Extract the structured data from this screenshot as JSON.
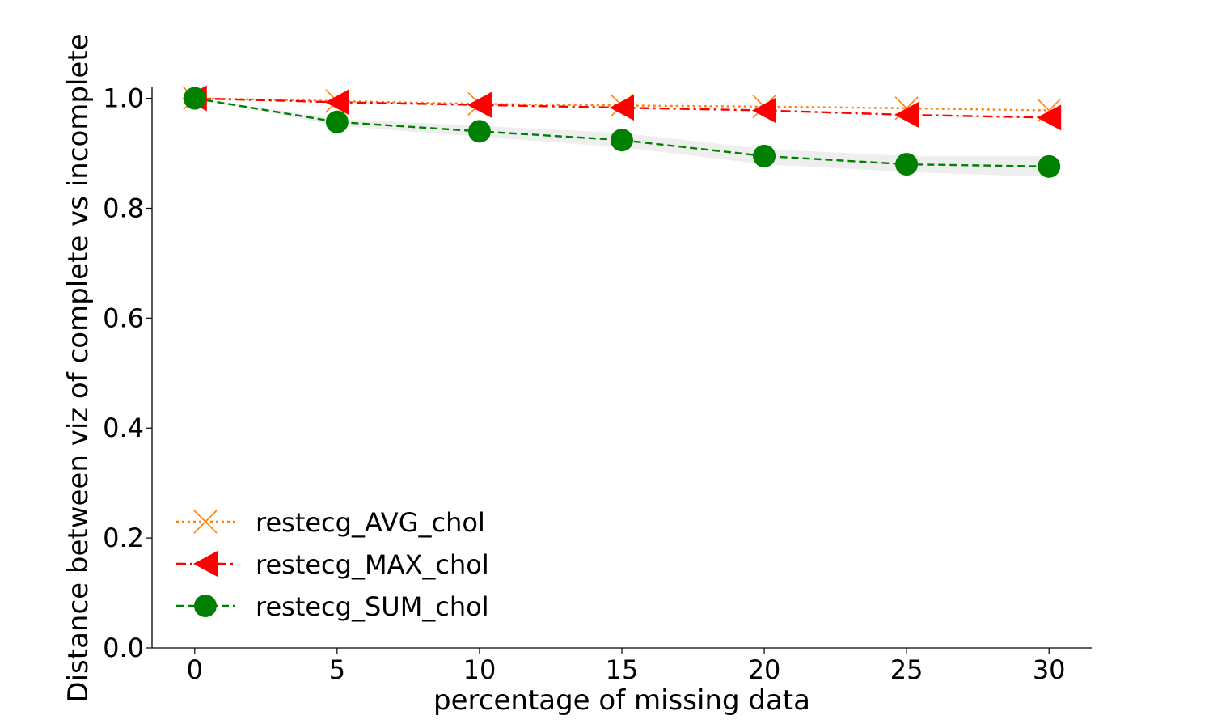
{
  "chart_data": {
    "type": "line",
    "title": "",
    "xlabel": "percentage of missing data",
    "ylabel": "Distance between viz of complete vs incomplete",
    "xlim": [
      -1.5,
      31.5
    ],
    "ylim": [
      0.0,
      1.02
    ],
    "xticks": [
      0,
      5,
      10,
      15,
      20,
      25,
      30
    ],
    "yticks": [
      0.0,
      0.2,
      0.4,
      0.6,
      0.8,
      1.0
    ],
    "xtick_labels": [
      "0",
      "5",
      "10",
      "15",
      "20",
      "25",
      "30"
    ],
    "ytick_labels": [
      "0.0",
      "0.2",
      "0.4",
      "0.6",
      "0.8",
      "1.0"
    ],
    "grid": false,
    "legend_position": "lower-left",
    "x": [
      0,
      5,
      10,
      15,
      20,
      25,
      30
    ],
    "series": [
      {
        "name": "restecg_AVG_chol",
        "values": [
          1.0,
          0.995,
          0.99,
          0.987,
          0.985,
          0.982,
          0.978
        ],
        "color": "#ff7f0e",
        "line_style": "dotted",
        "marker": "x-icon"
      },
      {
        "name": "restecg_MAX_chol",
        "values": [
          1.0,
          0.993,
          0.988,
          0.983,
          0.978,
          0.97,
          0.965
        ],
        "color": "#ff0000",
        "line_style": "dashdot",
        "marker": "left-triangle-icon"
      },
      {
        "name": "restecg_SUM_chol",
        "values": [
          1.0,
          0.957,
          0.94,
          0.924,
          0.895,
          0.88,
          0.876
        ],
        "band_low": [
          1.0,
          0.95,
          0.93,
          0.911,
          0.88,
          0.866,
          0.857
        ],
        "band_high": [
          1.0,
          0.963,
          0.95,
          0.937,
          0.908,
          0.895,
          0.895
        ],
        "color": "#008000",
        "line_style": "dashed",
        "marker": "circle-icon"
      }
    ]
  }
}
